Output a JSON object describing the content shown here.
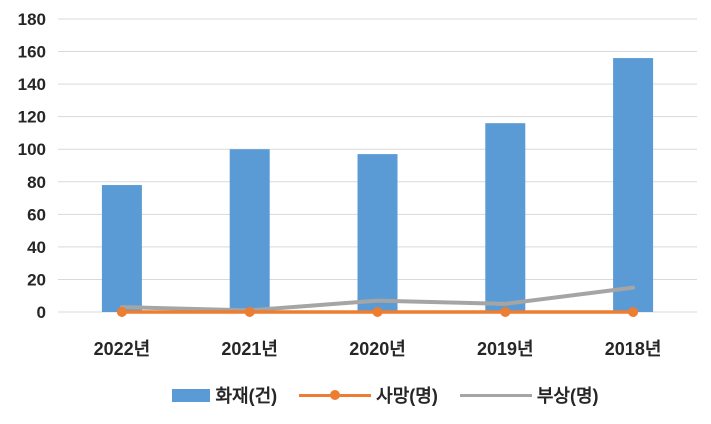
{
  "chart_data": {
    "type": "bar",
    "combo": "bar+line",
    "title": "",
    "xlabel": "",
    "ylabel": "",
    "categories": [
      "2022년",
      "2021년",
      "2020년",
      "2019년",
      "2018년"
    ],
    "series": [
      {
        "name": "화재(건)",
        "type": "bar",
        "color": "#5B9BD5",
        "marker": "none",
        "values": [
          78,
          100,
          97,
          116,
          156
        ]
      },
      {
        "name": "사망(명)",
        "type": "line",
        "color": "#ED7D31",
        "marker": "circle",
        "values": [
          0,
          0,
          0,
          0,
          0
        ]
      },
      {
        "name": "부상(명)",
        "type": "line",
        "color": "#A5A5A5",
        "marker": "none",
        "values": [
          3,
          1,
          7,
          5,
          15
        ]
      }
    ],
    "ylim": [
      0,
      180
    ],
    "ytick_step": 20,
    "y_tick_labels": [
      "0",
      "20",
      "40",
      "60",
      "80",
      "100",
      "120",
      "140",
      "160",
      "180"
    ],
    "grid": true,
    "gridline_color": "#D9D9D9",
    "axis_text_color": "#262626",
    "background_color": "#FFFFFF",
    "legend_position": "bottom"
  }
}
